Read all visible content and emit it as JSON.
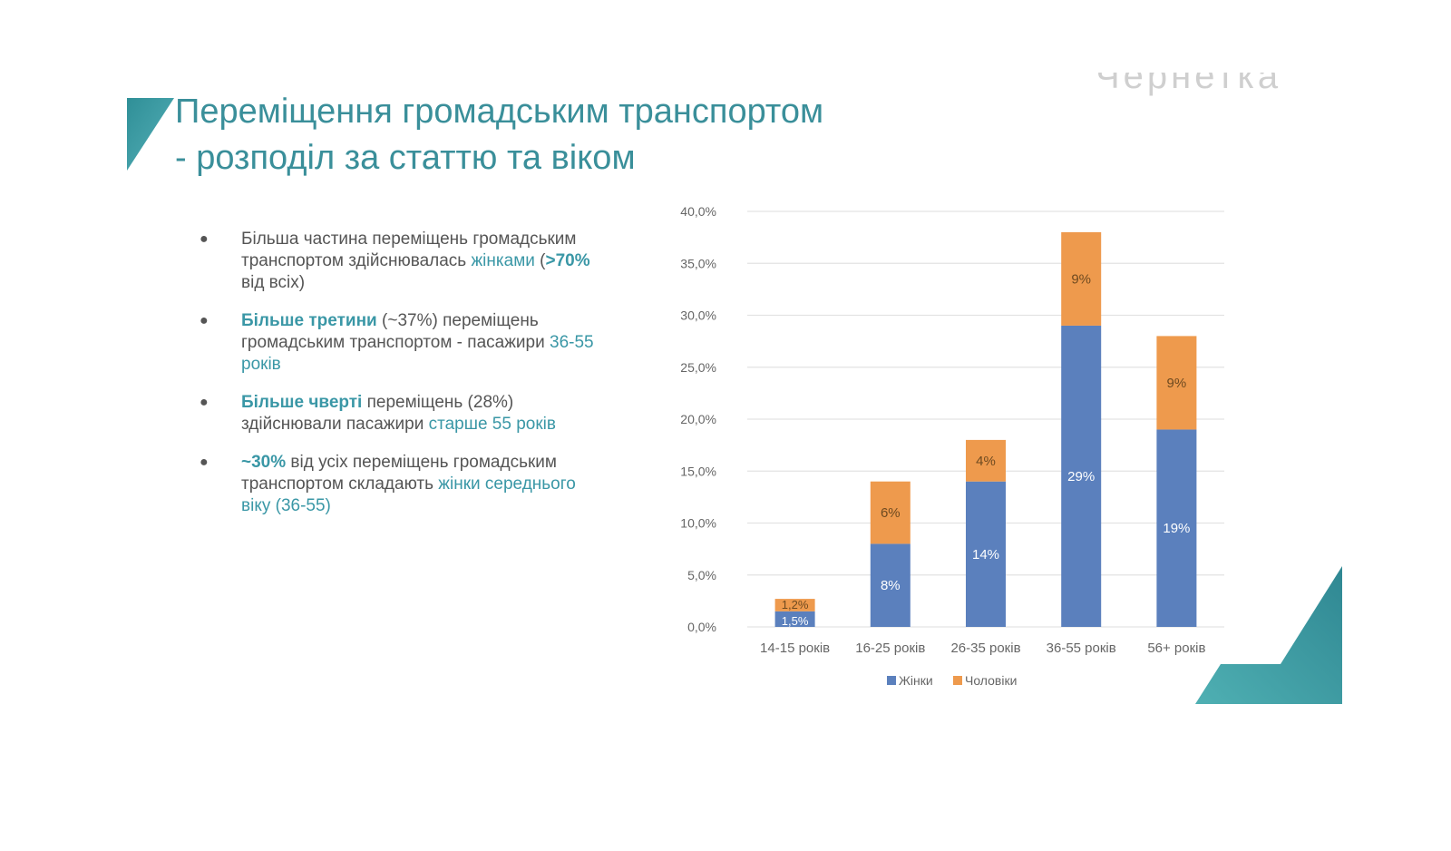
{
  "slide": {
    "title_line1": "Переміщення громадським транспортом",
    "title_line2": "- розподіл за статтю та віком",
    "watermark": "Чернетка",
    "accent_color": "#3a97a6"
  },
  "bullets": [
    {
      "p1": "Більша частина переміщень громадським транспортом здійснювалась ",
      "h1": "жінками",
      "p2": " (",
      "h2": ">70%",
      "p3": " від всіх)"
    },
    {
      "h1": "Більше третини",
      "p1": " (~37%) переміщень громадським транспортом - пасажири ",
      "h2": "36-55 років"
    },
    {
      "h1": "Більше чверті",
      "p1": " переміщень (28%) здійснювали  пасажири ",
      "h2": "старше 55 років"
    },
    {
      "h1": "~30%",
      "p1": " від усіх переміщень громадським транспортом складають ",
      "h2": "жінки середнього віку (36-55)"
    }
  ],
  "chart_data": {
    "type": "bar",
    "stacked": true,
    "categories": [
      "14-15 років",
      "16-25 років",
      "26-35 років",
      "36-55 років",
      "56+ років"
    ],
    "series": [
      {
        "name": "Жінки",
        "color": "#5b80bd",
        "values": [
          1.5,
          8,
          14,
          29,
          19
        ],
        "labels": [
          "1,5%",
          "8%",
          "14%",
          "29%",
          "19%"
        ]
      },
      {
        "name": "Чоловіки",
        "color": "#ee9a4d",
        "values": [
          1.2,
          6,
          4,
          9,
          9
        ],
        "labels": [
          "1,2%",
          "6%",
          "4%",
          "9%",
          "9%"
        ]
      }
    ],
    "ylim": [
      0,
      40
    ],
    "yticks": [
      0,
      5,
      10,
      15,
      20,
      25,
      30,
      35,
      40
    ],
    "ytick_labels": [
      "0,0%",
      "5,0%",
      "10,0%",
      "15,0%",
      "20,0%",
      "25,0%",
      "30,0%",
      "35,0%",
      "40,0%"
    ],
    "grid": true,
    "legend": "bottom"
  }
}
